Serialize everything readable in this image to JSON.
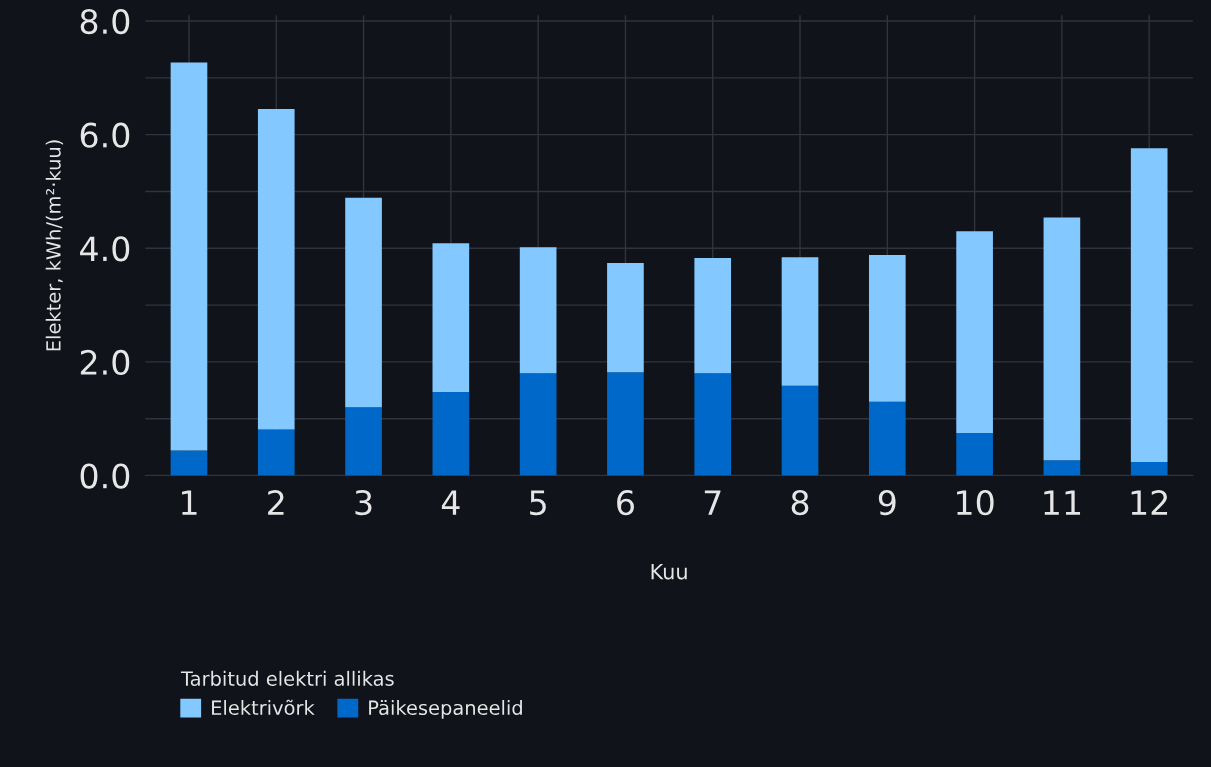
{
  "chart_data": {
    "type": "bar",
    "stacked": true,
    "categories": [
      "1",
      "2",
      "3",
      "4",
      "5",
      "6",
      "7",
      "8",
      "9",
      "10",
      "11",
      "12"
    ],
    "series": [
      {
        "name": "Päikesepaneelid",
        "color": "#0068c9",
        "values": [
          0.44,
          0.81,
          1.2,
          1.47,
          1.8,
          1.82,
          1.8,
          1.58,
          1.3,
          0.75,
          0.27,
          0.24
        ]
      },
      {
        "name": "Elektrivõrk",
        "color": "#83c9ff",
        "values": [
          6.83,
          5.64,
          3.69,
          2.62,
          2.22,
          1.92,
          2.03,
          2.26,
          2.58,
          3.55,
          4.27,
          5.52
        ]
      }
    ],
    "xlabel": "Kuu",
    "ylabel": "Elekter, kWh/(m²·kuu)",
    "legend_title": "Tarbitud elektri allikas",
    "ylim": [
      0,
      8.1
    ],
    "yticks": [
      {
        "value": 0,
        "label": "0.0"
      },
      {
        "value": 1,
        "label": null
      },
      {
        "value": 2,
        "label": "2.0"
      },
      {
        "value": 3,
        "label": null
      },
      {
        "value": 4,
        "label": "4.0"
      },
      {
        "value": 5,
        "label": null
      },
      {
        "value": 6,
        "label": "6.0"
      },
      {
        "value": 7,
        "label": null
      },
      {
        "value": 8,
        "label": "8.0"
      }
    ],
    "grid": true,
    "legend": "bottom left"
  }
}
